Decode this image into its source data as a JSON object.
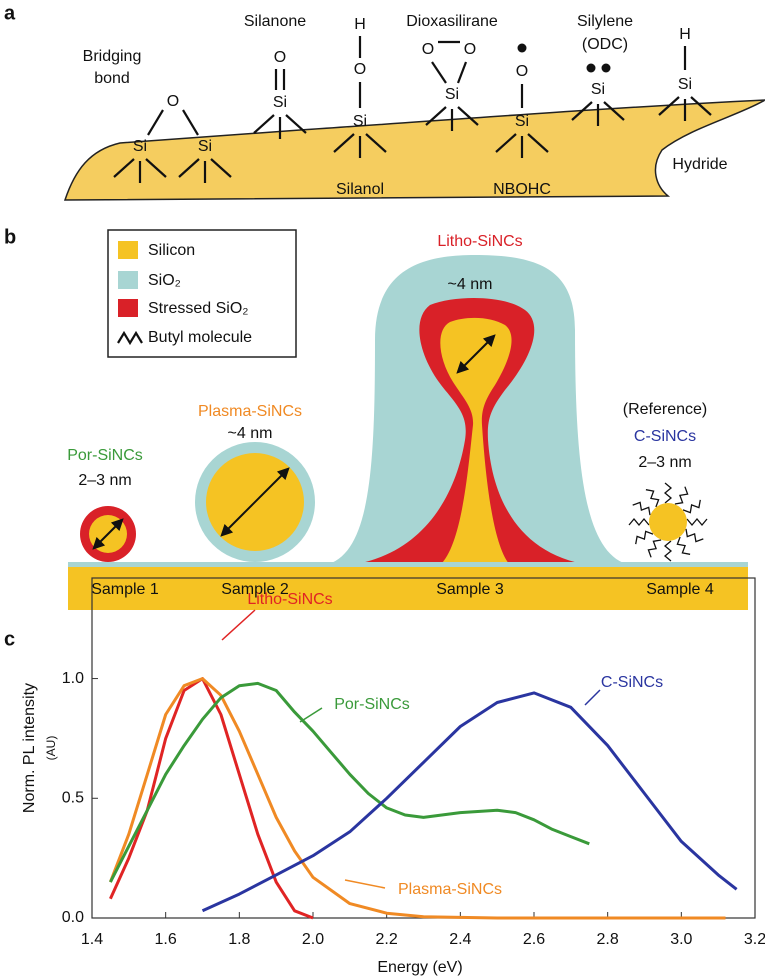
{
  "panel_a": {
    "label": "a",
    "atoms": [
      "O",
      "Si",
      "Si",
      "O",
      "Si",
      "H",
      "O",
      "Si",
      "O",
      "O",
      "Si",
      "O",
      "Si",
      "Si",
      "H",
      "Si"
    ],
    "structure_labels": [
      "Bridging",
      "bond",
      "Silanone",
      "Dioxasilirane",
      "Silylene",
      "(ODC)",
      "Silanol",
      "NBOHC",
      "Hydride"
    ]
  },
  "panel_b": {
    "label": "b",
    "legend": [
      "Silicon",
      "SiO₂",
      "Stressed SiO₂",
      "Butyl molecule"
    ],
    "annotations": [
      "Litho-SiNCs",
      "~4 nm",
      "Plasma-SiNCs",
      "~4 nm",
      "Por-SiNCs",
      "2–3 nm",
      "(Reference)",
      "C-SiNCs",
      "2–3 nm"
    ],
    "samples": [
      "Sample 1",
      "Sample 2",
      "Sample 3",
      "Sample 4"
    ]
  },
  "chart_data": {
    "type": "line",
    "panel_label": "c",
    "xlabel": "Energy (eV)",
    "ylabel": "Norm. PL intensity",
    "ylabel_unit": "(AU)",
    "xlim": [
      1.4,
      3.2
    ],
    "xticks": [
      1.4,
      1.6,
      1.8,
      {
        "value": 2,
        "label": "2.0"
      },
      2.2,
      2.4,
      2.6,
      2.8,
      {
        "value": 3,
        "label": "3.0"
      },
      3.2
    ],
    "ylim": [
      0,
      1.42
    ],
    "yticks": [
      {
        "value": 0,
        "label": "0.0"
      },
      0.5,
      {
        "value": 1,
        "label": "1.0"
      }
    ],
    "series": [
      {
        "name": "Litho-SiNCs",
        "color": "#e02424",
        "x": [
          1.45,
          1.5,
          1.55,
          1.6,
          1.65,
          1.7,
          1.75,
          1.8,
          1.85,
          1.9,
          1.95,
          2.0
        ],
        "values": [
          0.08,
          0.25,
          0.45,
          0.75,
          0.95,
          1.0,
          0.85,
          0.6,
          0.35,
          0.15,
          0.03,
          0.0
        ]
      },
      {
        "name": "Plasma-SiNCs",
        "color": "#f08a24",
        "x": [
          1.45,
          1.5,
          1.55,
          1.6,
          1.65,
          1.7,
          1.75,
          1.8,
          1.85,
          1.9,
          1.95,
          2.0,
          2.1,
          2.2,
          2.3,
          2.5,
          3.12
        ],
        "values": [
          0.15,
          0.35,
          0.6,
          0.85,
          0.97,
          1.0,
          0.93,
          0.78,
          0.6,
          0.42,
          0.28,
          0.17,
          0.06,
          0.02,
          0.005,
          0,
          0
        ]
      },
      {
        "name": "Por-SiNCs",
        "color": "#3a9a3a",
        "x": [
          1.45,
          1.5,
          1.55,
          1.6,
          1.65,
          1.7,
          1.75,
          1.8,
          1.85,
          1.9,
          1.95,
          2.0,
          2.05,
          2.1,
          2.15,
          2.2,
          2.25,
          2.3,
          2.4,
          2.5,
          2.55,
          2.6,
          2.65,
          2.7,
          2.75
        ],
        "values": [
          0.15,
          0.3,
          0.45,
          0.6,
          0.72,
          0.83,
          0.92,
          0.97,
          0.98,
          0.95,
          0.86,
          0.78,
          0.69,
          0.6,
          0.52,
          0.46,
          0.43,
          0.42,
          0.44,
          0.45,
          0.44,
          0.41,
          0.37,
          0.34,
          0.31
        ]
      },
      {
        "name": "C-SiNCs",
        "color": "#2a35a0",
        "x": [
          1.7,
          1.8,
          1.9,
          2.0,
          2.1,
          2.2,
          2.3,
          2.4,
          2.5,
          2.6,
          2.7,
          2.8,
          2.9,
          3.0,
          3.1,
          3.15
        ],
        "values": [
          0.03,
          0.1,
          0.18,
          0.26,
          0.36,
          0.5,
          0.65,
          0.8,
          0.9,
          0.94,
          0.88,
          0.72,
          0.52,
          0.32,
          0.18,
          0.12
        ]
      }
    ]
  }
}
